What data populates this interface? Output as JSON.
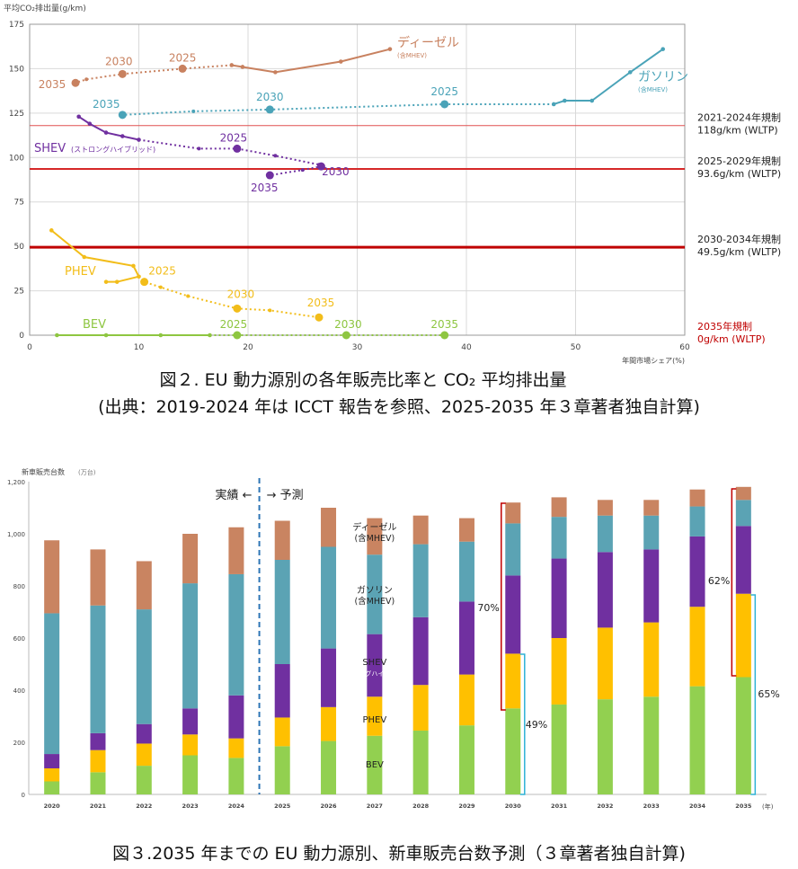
{
  "captions": {
    "fig2_title": "図２. EU 動力源別の各年販売比率と CO₂ 平均排出量",
    "fig2_source": "(出典：2019-2024 年は ICCT 報告を参照、2025-2035 年３章著者独自計算)",
    "fig3_title": "図３.2035 年までの EU 動力源別、新車販売台数予測（３章著者独自計算)"
  },
  "chart_data": [
    {
      "type": "scatter",
      "ylabel": "平均CO₂排出量(g/km)",
      "xlabel": "年間市場シェア(%)",
      "xlim": [
        0,
        60
      ],
      "ylim": [
        0,
        175
      ],
      "xticks": [
        "0",
        "10",
        "20",
        "30",
        "40",
        "50",
        "60"
      ],
      "yticks": [
        "0",
        "25",
        "50",
        "75",
        "100",
        "125",
        "150",
        "175"
      ],
      "grid": true,
      "colors": {
        "diesel": "#c8815f",
        "petrol": "#4aa3b8",
        "shev": "#7030a0",
        "phev": "#f2bd1a",
        "bev": "#8ec641",
        "reg_light": "#e05050",
        "reg_mid": "#d62828",
        "reg_dark": "#c00000"
      },
      "regulations": [
        {
          "y": 118,
          "label1": "2021-2024年規制",
          "label2": "118g/km (WLTP)",
          "color": "reg_light"
        },
        {
          "y": 93.6,
          "label1": "2025-2029年規制",
          "label2": "93.6g/km (WLTP)",
          "color": "reg_mid"
        },
        {
          "y": 49.5,
          "label1": "2030-2034年規制",
          "label2": "49.5g/km (WLTP)",
          "color": "reg_dark"
        },
        {
          "y": 0,
          "label1": "2035年規制",
          "label2": "0g/km (WLTP)",
          "color": "reg_dark"
        }
      ],
      "series": [
        {
          "key": "diesel",
          "name": "ディーゼル",
          "sub": "(含MHEV)",
          "historical": [
            [
              33,
              161
            ],
            [
              28.5,
              154
            ],
            [
              22.5,
              148
            ],
            [
              19.5,
              151
            ],
            [
              18.5,
              152
            ]
          ],
          "projection": [
            [
              18.5,
              152
            ],
            [
              14,
              150
            ],
            [
              8.5,
              147
            ],
            [
              5.2,
              144
            ],
            [
              4.2,
              142
            ]
          ],
          "year_points": [
            [
              14,
              150
            ],
            [
              8.5,
              147
            ],
            [
              4.2,
              142
            ]
          ],
          "year_labels": [
            {
              "text": "2025",
              "x": 14,
              "y": 150
            },
            {
              "text": "2030",
              "x": 8.5,
              "y": 147
            },
            {
              "text": "2035",
              "x": 4.2,
              "y": 142
            }
          ]
        },
        {
          "key": "petrol",
          "name": "ガソリン",
          "sub": "(含MHEV)",
          "historical": [
            [
              58,
              161
            ],
            [
              55,
              148
            ],
            [
              51.5,
              132
            ],
            [
              49,
              132
            ],
            [
              48,
              130
            ]
          ],
          "projection": [
            [
              48,
              130
            ],
            [
              38,
              130
            ],
            [
              22,
              127
            ],
            [
              15,
              126
            ],
            [
              8.5,
              124
            ]
          ],
          "year_points": [
            [
              38,
              130
            ],
            [
              22,
              127
            ],
            [
              8.5,
              124
            ]
          ],
          "year_labels": [
            {
              "text": "2025",
              "x": 38,
              "y": 130
            },
            {
              "text": "2030",
              "x": 22,
              "y": 127
            },
            {
              "text": "2035",
              "x": 8.5,
              "y": 124
            }
          ]
        },
        {
          "key": "shev",
          "name": "SHEV",
          "sub": "(ストロングハイブリッド)",
          "historical": [
            [
              4.5,
              123
            ],
            [
              5.5,
              119
            ],
            [
              7,
              114
            ],
            [
              8.5,
              112
            ],
            [
              10,
              110
            ]
          ],
          "projection": [
            [
              10,
              110
            ],
            [
              15.5,
              105
            ],
            [
              19,
              105
            ],
            [
              22.5,
              101
            ],
            [
              26.5,
              96
            ],
            [
              26.7,
              95
            ],
            [
              25,
              93
            ],
            [
              22,
              90
            ]
          ],
          "year_points": [
            [
              19,
              105
            ],
            [
              26.7,
              95
            ],
            [
              22,
              90
            ]
          ],
          "year_labels": [
            {
              "text": "2025",
              "x": 19,
              "y": 105
            },
            {
              "text": "2030",
              "x": 26.7,
              "y": 95
            },
            {
              "text": "2035",
              "x": 22,
              "y": 90
            }
          ]
        },
        {
          "key": "phev",
          "name": "PHEV",
          "sub": "",
          "historical": [
            [
              2,
              59
            ],
            [
              5,
              44
            ],
            [
              9.5,
              39
            ],
            [
              10,
              33
            ],
            [
              8,
              30
            ],
            [
              7,
              30
            ]
          ],
          "projection": [
            [
              10,
              33
            ],
            [
              10.5,
              30
            ],
            [
              12,
              27
            ],
            [
              14.5,
              22
            ],
            [
              19,
              15
            ],
            [
              22,
              14
            ],
            [
              26.5,
              10
            ]
          ],
          "year_points": [
            [
              10.5,
              30
            ],
            [
              19,
              15
            ],
            [
              26.5,
              10
            ]
          ],
          "year_labels": [
            {
              "text": "2025",
              "x": 10.5,
              "y": 30
            },
            {
              "text": "2030",
              "x": 19,
              "y": 15
            },
            {
              "text": "2035",
              "x": 26.5,
              "y": 10
            }
          ]
        },
        {
          "key": "bev",
          "name": "BEV",
          "sub": "",
          "historical": [
            [
              2.5,
              0
            ],
            [
              7,
              0
            ],
            [
              12,
              0
            ],
            [
              16.5,
              0
            ]
          ],
          "projection": [
            [
              16.5,
              0
            ],
            [
              19,
              0
            ],
            [
              29,
              0
            ],
            [
              38,
              0
            ]
          ],
          "year_points": [
            [
              19,
              0
            ],
            [
              29,
              0
            ],
            [
              38,
              0
            ]
          ],
          "year_labels": [
            {
              "text": "2025",
              "x": 19,
              "y": 0
            },
            {
              "text": "2030",
              "x": 29,
              "y": 0
            },
            {
              "text": "2035",
              "x": 38,
              "y": 0
            }
          ]
        }
      ]
    },
    {
      "type": "bar",
      "ylabel": "新車販売台数",
      "yunit": "(万台)",
      "xunit": "(年)",
      "ylim": [
        0,
        1200
      ],
      "yticks": [
        "0",
        "200",
        "400",
        "600",
        "800",
        "1,000",
        "1,200"
      ],
      "categories": [
        "2020",
        "2021",
        "2022",
        "2023",
        "2024",
        "2025",
        "2026",
        "2027",
        "2028",
        "2029",
        "2030",
        "2031",
        "2032",
        "2033",
        "2034",
        "2035"
      ],
      "colors": {
        "BEV": "#92d050",
        "PHEV": "#ffc000",
        "SHEV": "#7030a0",
        "ガソリン": "#5ba3b4",
        "ディーゼル": "#c98461"
      },
      "series": [
        {
          "name": "BEV",
          "values": [
            50,
            85,
            110,
            150,
            140,
            185,
            205,
            225,
            245,
            265,
            330,
            345,
            365,
            375,
            415,
            450
          ]
        },
        {
          "name": "PHEV",
          "values": [
            50,
            85,
            85,
            80,
            75,
            110,
            130,
            150,
            175,
            195,
            210,
            255,
            275,
            285,
            305,
            320
          ]
        },
        {
          "name": "SHEV",
          "values": [
            55,
            65,
            75,
            100,
            165,
            205,
            225,
            240,
            260,
            280,
            300,
            305,
            290,
            280,
            270,
            260
          ]
        },
        {
          "name": "ガソリン",
          "values": [
            540,
            490,
            440,
            480,
            465,
            400,
            390,
            305,
            280,
            230,
            200,
            160,
            140,
            130,
            115,
            100
          ]
        },
        {
          "name": "ディーゼル",
          "values": [
            280,
            215,
            185,
            190,
            180,
            150,
            150,
            140,
            110,
            90,
            80,
            75,
            60,
            60,
            65,
            50
          ]
        }
      ],
      "annotations": {
        "actual": "実績 ←",
        "forecast": "→ 予測",
        "pct_2030_upper": "70%",
        "pct_2030_lower": "49%",
        "pct_2035_upper": "62%",
        "pct_2035_lower": "65%"
      },
      "segment_labels": [
        {
          "line1": "ディーゼル",
          "line2": "(含MHEV)"
        },
        {
          "line1": "ガソリン",
          "line2": "(含MHEV)"
        },
        {
          "line1": "SHEV",
          "line2": "(ストロングハイブリッド)"
        },
        {
          "line1": "PHEV",
          "line2": ""
        },
        {
          "line1": "BEV",
          "line2": ""
        }
      ]
    }
  ]
}
